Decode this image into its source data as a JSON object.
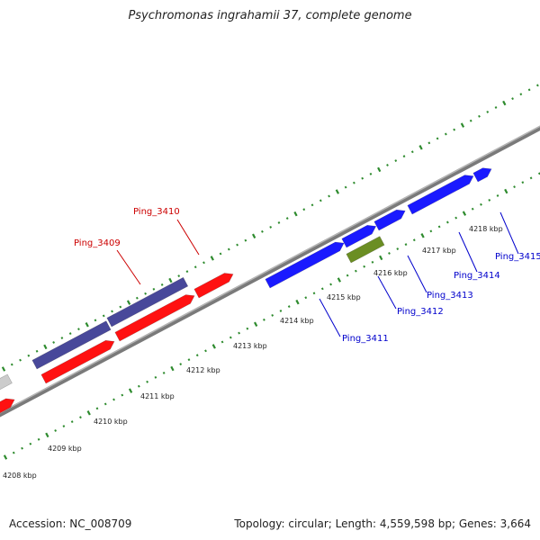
{
  "title": "Psychromonas ingrahamii 37, complete genome",
  "footer": {
    "accession": "Accession: NC_008709",
    "summary": "Topology: circular; Length: 4,559,598 bp; Genes: 3,664"
  },
  "colors": {
    "backbone": "#888888",
    "tick": "#2e8b2e",
    "red_gene": "#ff1111",
    "red_label": "#cc0000",
    "purple_gene": "#48489a",
    "blue_gene": "#1a1aff",
    "blue_label": "#0000cc",
    "green_gene": "#6b8e23",
    "gray_gene": "#cccccc"
  },
  "scale_labels": [
    {
      "text": "4208 kbp"
    },
    {
      "text": "4209 kbp"
    },
    {
      "text": "4210 kbp"
    },
    {
      "text": "4211 kbp"
    },
    {
      "text": "4212 kbp"
    },
    {
      "text": "4213 kbp"
    },
    {
      "text": "4214 kbp"
    },
    {
      "text": "4215 kbp"
    },
    {
      "text": "4216 kbp"
    },
    {
      "text": "4217 kbp"
    },
    {
      "text": "4218 kbp"
    }
  ],
  "gene_labels": [
    {
      "id": "Ping_3409",
      "text": "Ping_3409",
      "color": "red_label"
    },
    {
      "id": "Ping_3410",
      "text": "Ping_3410",
      "color": "red_label"
    },
    {
      "id": "Ping_3411",
      "text": "Ping_3411",
      "color": "blue_label"
    },
    {
      "id": "Ping_3412",
      "text": "Ping_3412",
      "color": "blue_label"
    },
    {
      "id": "Ping_3413",
      "text": "Ping_3413",
      "color": "blue_label"
    },
    {
      "id": "Ping_3414",
      "text": "Ping_3414",
      "color": "blue_label"
    },
    {
      "id": "Ping_3415",
      "text": "Ping_3415",
      "color": "blue_label"
    }
  ]
}
